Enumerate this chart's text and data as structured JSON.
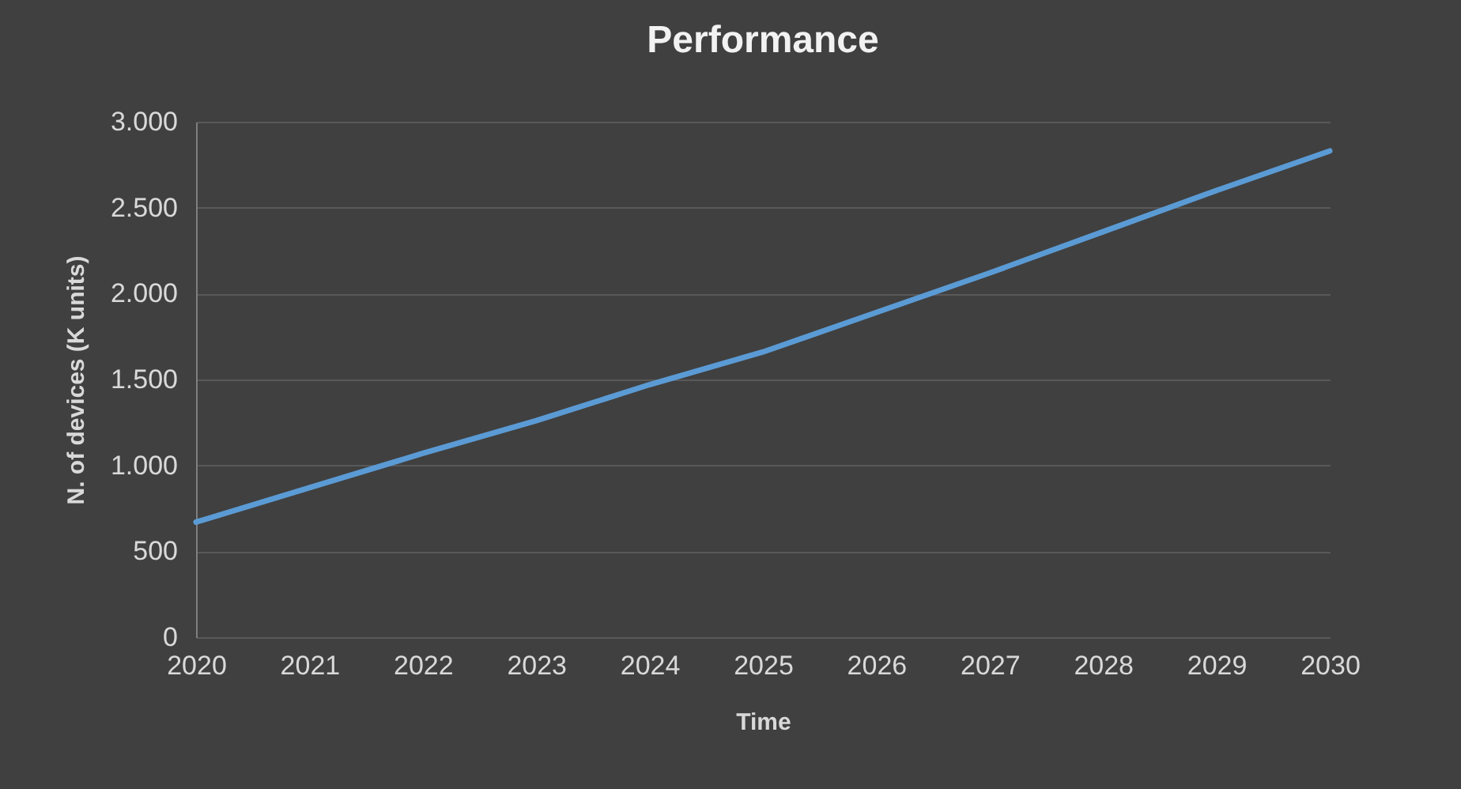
{
  "chart_data": {
    "type": "line",
    "title": "Performance",
    "xlabel": "Time",
    "ylabel": "N. of devices (K units)",
    "x": [
      2020,
      2021,
      2022,
      2023,
      2024,
      2025,
      2026,
      2027,
      2028,
      2029,
      2030
    ],
    "series": [
      {
        "color": "#5b9bd5",
        "values": [
          670,
          870,
          1070,
          1260,
          1470,
          1660,
          1890,
          2120,
          2360,
          2600,
          2830
        ]
      }
    ],
    "xlim": [
      2020,
      2030
    ],
    "xticks": [
      2020,
      2021,
      2022,
      2023,
      2024,
      2025,
      2026,
      2027,
      2028,
      2029,
      2030
    ],
    "ylim": [
      0,
      3000
    ],
    "yticks": [
      0,
      500,
      {
        "value": 1000,
        "label": "1.000"
      },
      {
        "value": 1500,
        "label": "1.500"
      },
      {
        "value": 2000,
        "label": "2.000"
      },
      {
        "value": 2500,
        "label": "2.500"
      },
      {
        "value": 3000,
        "label": "3.000"
      }
    ],
    "grid": "y",
    "marker": "none",
    "line_style": "solid"
  }
}
